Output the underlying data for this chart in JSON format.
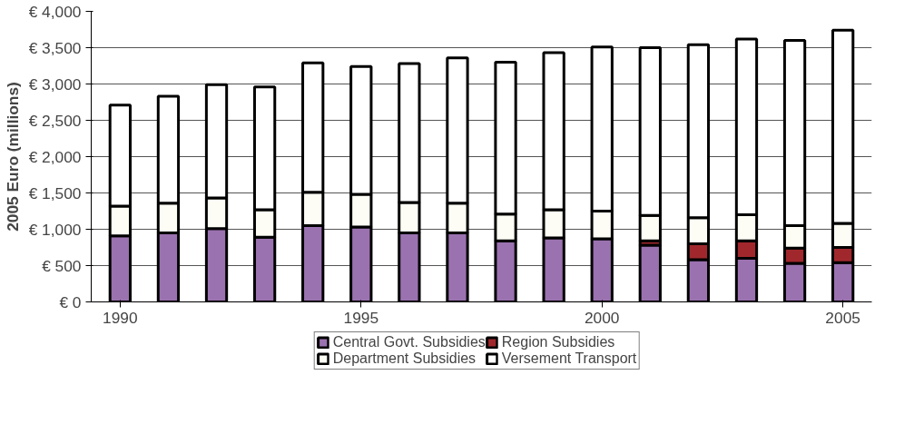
{
  "chart_data": {
    "type": "bar",
    "stacked": true,
    "ylabel": "2005 Euro (millions)",
    "x": [
      1990,
      1991,
      1992,
      1993,
      1994,
      1995,
      1996,
      1997,
      1998,
      1999,
      2000,
      2001,
      2002,
      2003,
      2004,
      2005
    ],
    "xlim": [
      1989.4,
      2005.6
    ],
    "xticks": [
      1990,
      1995,
      2000,
      2005
    ],
    "ylim": [
      0,
      4000
    ],
    "yticks": [
      {
        "value": 0,
        "label": "€ 0"
      },
      {
        "value": 500,
        "label": "€ 500"
      },
      {
        "value": 1000,
        "label": "€ 1,000"
      },
      {
        "value": 1500,
        "label": "€ 1,500"
      },
      {
        "value": 2000,
        "label": "€ 2,000"
      },
      {
        "value": 2500,
        "label": "€ 2,500"
      },
      {
        "value": 3000,
        "label": "€ 3,000"
      },
      {
        "value": 3500,
        "label": "€ 3,500"
      },
      {
        "value": 4000,
        "label": "€ 4,000"
      }
    ],
    "grid": "y",
    "legend": "bottom",
    "series": [
      {
        "name": "Central Govt. Subsidies",
        "color": "#9b72b0",
        "values": [
          910,
          950,
          1010,
          890,
          1050,
          1030,
          950,
          950,
          840,
          880,
          870,
          780,
          580,
          600,
          530,
          540
        ]
      },
      {
        "name": "Region Subsidies",
        "color": "#a0282d",
        "values": [
          null,
          null,
          null,
          null,
          null,
          null,
          null,
          null,
          null,
          null,
          null,
          60,
          220,
          240,
          210,
          210
        ]
      },
      {
        "name": "Department Subsidies",
        "color": "#fdfdf5",
        "values": [
          410,
          410,
          420,
          380,
          460,
          450,
          420,
          410,
          370,
          390,
          380,
          350,
          360,
          360,
          310,
          330
        ]
      },
      {
        "name": "Versement Transport",
        "color": "#ffffff",
        "values": [
          1390,
          1470,
          1560,
          1690,
          1780,
          1760,
          1910,
          2000,
          2090,
          2160,
          2260,
          2310,
          2380,
          2420,
          2550,
          2660
        ]
      }
    ]
  }
}
